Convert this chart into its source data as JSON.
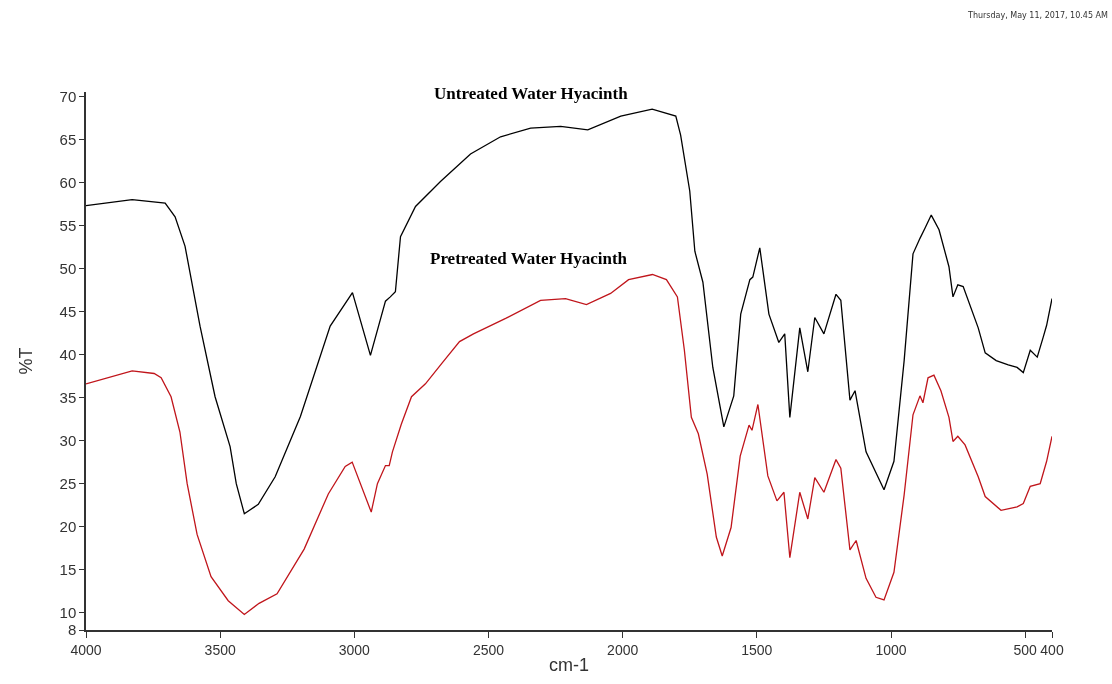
{
  "chart_data": {
    "type": "line",
    "xlabel": "cm-1",
    "ylabel": "%T",
    "annotations": [
      "Thursday, May 11, 2017, 10.45 AM"
    ],
    "xlim": [
      4000,
      400
    ],
    "xticks": [
      4000,
      3500,
      3000,
      2500,
      2000,
      1500,
      1000,
      500,
      400
    ],
    "ylim": [
      8,
      70.5
    ],
    "yticks": [
      8,
      10,
      15,
      20,
      25,
      30,
      35,
      40,
      45,
      50,
      55,
      60,
      65,
      70
    ],
    "legend": false,
    "marker": "none",
    "line_style": "solid",
    "series": [
      {
        "name": "Untreated Water Hyacinth",
        "color": "#000000",
        "x": [
          4000,
          3828,
          3705,
          3668,
          3631,
          3575,
          3519,
          3463,
          3440,
          3410,
          3358,
          3295,
          3201,
          3090,
          3007,
          2940,
          2884,
          2866,
          2847,
          2828,
          2772,
          2679,
          2567,
          2455,
          2343,
          2231,
          2130,
          2007,
          1890,
          1802,
          1784,
          1750,
          1731,
          1701,
          1664,
          1623,
          1586,
          1560,
          1526,
          1515,
          1489,
          1455,
          1418,
          1396,
          1377,
          1340,
          1310,
          1284,
          1250,
          1205,
          1187,
          1153,
          1134,
          1093,
          1026,
          989,
          951,
          918,
          892,
          873,
          850,
          821,
          784,
          769,
          751,
          731,
          675,
          649,
          608,
          563,
          530,
          507,
          481,
          455,
          433,
          420,
          400
        ],
        "values": [
          57.3,
          58.0,
          57.6,
          56.0,
          52.6,
          43.3,
          35.1,
          29.3,
          25.0,
          21.5,
          22.6,
          25.8,
          32.8,
          43.3,
          47.2,
          39.9,
          46.2,
          46.7,
          47.3,
          53.7,
          57.2,
          60.1,
          63.3,
          65.3,
          66.3,
          66.5,
          66.1,
          67.7,
          68.5,
          67.7,
          65.5,
          59.0,
          52.0,
          48.4,
          38.5,
          31.6,
          35.2,
          44.7,
          48.7,
          49.0,
          52.4,
          44.7,
          41.4,
          42.4,
          32.7,
          43.1,
          38.0,
          44.3,
          42.4,
          47.0,
          46.3,
          34.7,
          35.8,
          28.7,
          24.3,
          27.6,
          39.3,
          51.7,
          53.5,
          54.7,
          56.2,
          54.5,
          50.2,
          46.7,
          48.1,
          47.9,
          43.1,
          40.2,
          39.3,
          38.8,
          38.5,
          37.9,
          40.5,
          39.7,
          42.0,
          43.4,
          46.5
        ]
      },
      {
        "name": "Pretreated Water Hyacinth",
        "color": "#c0151b",
        "x": [
          4000,
          3828,
          3746,
          3720,
          3683,
          3650,
          3623,
          3586,
          3534,
          3470,
          3410,
          3355,
          3288,
          3187,
          3097,
          3034,
          3008,
          2937,
          2914,
          2884,
          2870,
          2858,
          2825,
          2787,
          2735,
          2671,
          2608,
          2556,
          2436,
          2306,
          2213,
          2135,
          2045,
          1978,
          1889,
          1837,
          1796,
          1770,
          1744,
          1718,
          1685,
          1651,
          1629,
          1596,
          1562,
          1529,
          1518,
          1496,
          1459,
          1425,
          1399,
          1377,
          1340,
          1310,
          1284,
          1250,
          1205,
          1187,
          1153,
          1130,
          1093,
          1056,
          1026,
          989,
          951,
          918,
          892,
          881,
          862,
          840,
          814,
          784,
          769,
          751,
          724,
          675,
          649,
          590,
          530,
          507,
          481,
          444,
          420,
          400
        ],
        "values": [
          36.6,
          38.1,
          37.8,
          37.3,
          35.1,
          31.0,
          25.0,
          19.1,
          14.2,
          11.4,
          9.8,
          11.1,
          12.2,
          17.4,
          23.8,
          27.0,
          27.5,
          21.7,
          25.0,
          27.1,
          27.1,
          28.7,
          31.9,
          35.1,
          36.6,
          39.1,
          41.5,
          42.4,
          44.2,
          46.3,
          46.5,
          45.8,
          47.1,
          48.7,
          49.3,
          48.7,
          46.7,
          40.5,
          32.7,
          30.8,
          26.1,
          18.8,
          16.6,
          19.9,
          28.2,
          31.8,
          31.2,
          34.2,
          25.9,
          23.0,
          24.0,
          16.4,
          24.0,
          20.9,
          25.7,
          24.0,
          27.8,
          26.8,
          17.3,
          18.4,
          14.0,
          11.8,
          11.5,
          14.7,
          23.7,
          33.0,
          35.2,
          34.4,
          37.3,
          37.6,
          35.8,
          32.7,
          29.9,
          30.5,
          29.5,
          25.8,
          23.5,
          21.9,
          22.3,
          22.7,
          24.7,
          25.0,
          27.6,
          30.5
        ]
      }
    ]
  }
}
